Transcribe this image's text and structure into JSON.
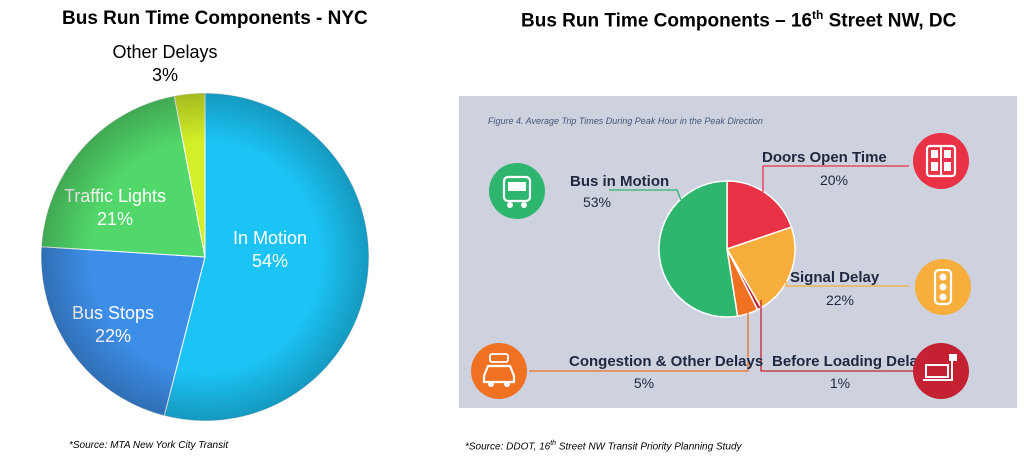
{
  "chart_data": [
    {
      "type": "pie",
      "title": "Bus Run Time Components - NYC",
      "source": "*Source: MTA New York City Transit",
      "slices": [
        {
          "label": "In Motion",
          "value": 54,
          "pct": "54%",
          "color": "#1bc4f5"
        },
        {
          "label": "Bus Stops",
          "value": 22,
          "pct": "22%",
          "color": "#3d8ee8"
        },
        {
          "label": "Traffic Lights",
          "value": 21,
          "pct": "21%",
          "color": "#52d86a"
        },
        {
          "label": "Other Delays",
          "value": 3,
          "pct": "3%",
          "color": "#d4ef28"
        }
      ]
    },
    {
      "type": "pie",
      "title_main": "Bus Run Time Components – 16",
      "title_sup": "th",
      "title_end": " Street NW, DC",
      "figure_caption": "Figure 4. Average Trip Times During Peak Hour in the Peak Direction",
      "source_prefix": "*Source: DDOT, 16",
      "source_sup": "th",
      "source_suffix": " Street NW Transit Priority Planning Study",
      "slices": [
        {
          "label": "Bus in Motion",
          "value": 53,
          "pct": "53%",
          "color": "#2eb56e"
        },
        {
          "label": "Doors Open Time",
          "value": 20,
          "pct": "20%",
          "color": "#ea3246"
        },
        {
          "label": "Signal Delay",
          "value": 22,
          "pct": "22%",
          "color": "#f7ae3c"
        },
        {
          "label": "Before Loading Delay",
          "value": 1,
          "pct": "1%",
          "color": "#c42232"
        },
        {
          "label": "Congestion & Other Delays",
          "value": 5,
          "pct": "5%",
          "color": "#f07122"
        }
      ]
    }
  ]
}
